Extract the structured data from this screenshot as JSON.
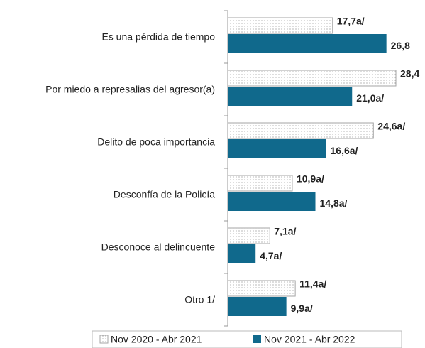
{
  "chart_data": {
    "type": "hbar",
    "categories": [
      "Es una pérdida de tiempo",
      "Por miedo a represalias del agresor(a)",
      "Delito de poca importancia",
      "Desconfía de la Policía",
      "Desconoce al delincuente",
      "Otro 1/"
    ],
    "series": [
      {
        "name": "Nov 2020 - Abr 2021",
        "color": "#a6a6a6",
        "values": [
          17.7,
          28.4,
          24.6,
          10.9,
          7.1,
          11.4
        ],
        "value_labels": [
          "17,7a/",
          "28,4",
          "24,6a/",
          "10,9a/",
          "7,1a/",
          "11,4a/"
        ]
      },
      {
        "name": "Nov  2021 - Abr 2022",
        "color": "#10698c",
        "values": [
          26.8,
          21.0,
          16.6,
          14.8,
          4.7,
          9.9
        ],
        "value_labels": [
          "26,8",
          "21,0a/",
          "16,6a/",
          "14,8a/",
          "4,7a/",
          "9,9a/"
        ]
      }
    ],
    "legend": "bottom"
  }
}
